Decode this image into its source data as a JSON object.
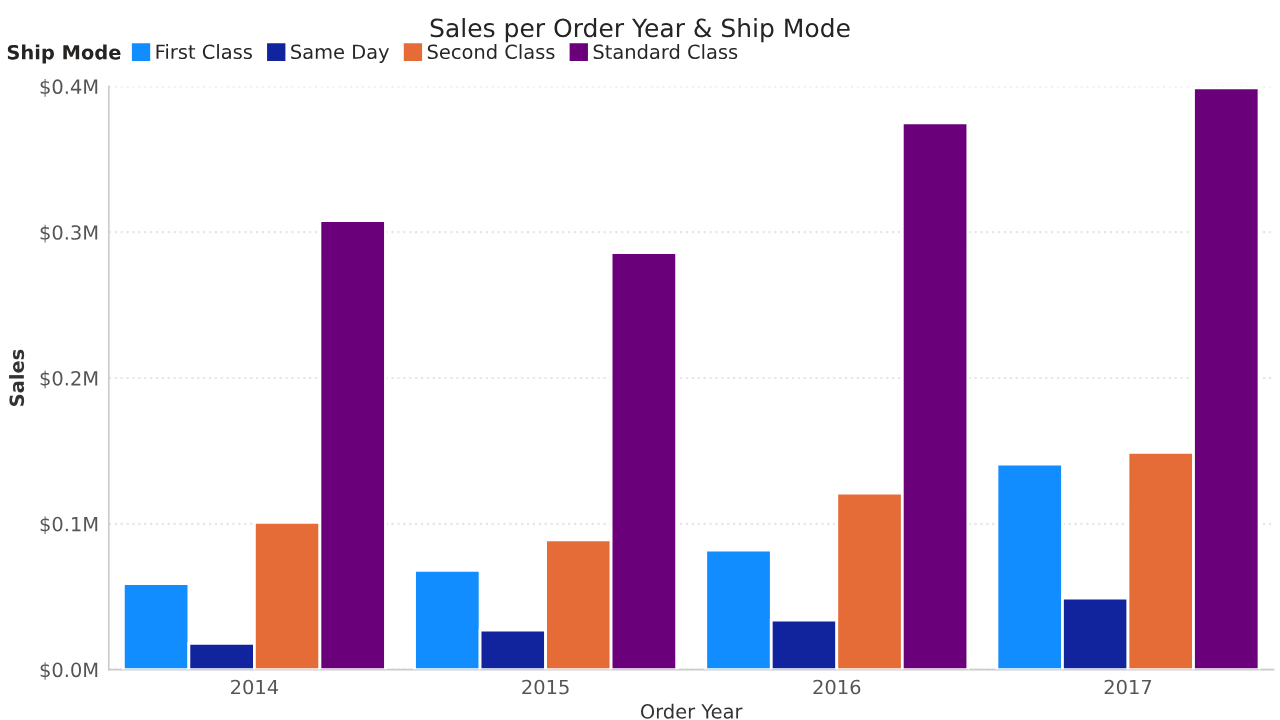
{
  "chart_data": {
    "type": "bar",
    "title": "Sales per Order Year & Ship Mode",
    "xlabel": "Order Year",
    "ylabel": "Sales",
    "legend_title": "Ship Mode",
    "legend": "top left",
    "categories": [
      "2014",
      "2015",
      "2016",
      "2017"
    ],
    "series": [
      {
        "name": "First Class",
        "color": "#118dff",
        "values": [
          0.059,
          0.068,
          0.082,
          0.141
        ]
      },
      {
        "name": "Same Day",
        "color": "#12239e",
        "values": [
          0.018,
          0.027,
          0.034,
          0.049
        ]
      },
      {
        "name": "Second Class",
        "color": "#e66c37",
        "values": [
          0.101,
          0.089,
          0.121,
          0.149
        ]
      },
      {
        "name": "Standard Class",
        "color": "#6b007b",
        "values": [
          0.308,
          0.286,
          0.375,
          0.399
        ]
      }
    ],
    "ylim": [
      0,
      0.4
    ],
    "yticks": [
      {
        "value": 0,
        "label": "$0.0M"
      },
      {
        "value": 0.1,
        "label": "$0.1M"
      },
      {
        "value": 0.2,
        "label": "$0.2M"
      },
      {
        "value": 0.3,
        "label": "$0.3M"
      },
      {
        "value": 0.4,
        "label": "$0.4M"
      }
    ],
    "grid": "y"
  }
}
